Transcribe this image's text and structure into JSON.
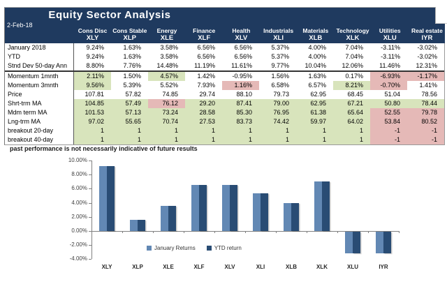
{
  "header": {
    "title": "Equity Sector Analysis",
    "date": "2-Feb-18"
  },
  "table": {
    "columns": [
      {
        "sector": "Cons Disc",
        "ticker": "XLY"
      },
      {
        "sector": "Cons Stable",
        "ticker": "XLP"
      },
      {
        "sector": "Energy",
        "ticker": "XLE"
      },
      {
        "sector": "Finance",
        "ticker": "XLF"
      },
      {
        "sector": "Health",
        "ticker": "XLV"
      },
      {
        "sector": "Industrials",
        "ticker": "XLI"
      },
      {
        "sector": "Materials",
        "ticker": "XLB"
      },
      {
        "sector": "Technology",
        "ticker": "XLK"
      },
      {
        "sector": "Utilities",
        "ticker": "XLU"
      },
      {
        "sector": "Real estate",
        "ticker": "IYR"
      }
    ],
    "rows": [
      {
        "label": "January 2018",
        "values": [
          "9.24%",
          "1.63%",
          "3.58%",
          "6.56%",
          "6.56%",
          "5.37%",
          "4.00%",
          "7.04%",
          "-3.11%",
          "-3.02%"
        ],
        "colors": [
          "white",
          "white",
          "white",
          "white",
          "white",
          "white",
          "white",
          "white",
          "white",
          "white"
        ]
      },
      {
        "label": "YTD",
        "values": [
          "9.24%",
          "1.63%",
          "3.58%",
          "6.56%",
          "6.56%",
          "5.37%",
          "4.00%",
          "7.04%",
          "-3.11%",
          "-3.02%"
        ],
        "colors": [
          "white",
          "white",
          "white",
          "white",
          "white",
          "white",
          "white",
          "white",
          "white",
          "white"
        ]
      },
      {
        "label": "Stnd Dev 50-day Ann",
        "values": [
          "8.80%",
          "7.76%",
          "14.48%",
          "11.19%",
          "11.61%",
          "9.77%",
          "10.04%",
          "12.06%",
          "11.46%",
          "12.31%"
        ],
        "colors": [
          "white",
          "white",
          "white",
          "white",
          "white",
          "white",
          "white",
          "white",
          "white",
          "white"
        ]
      },
      {
        "label": "Momentum 1mnth",
        "values": [
          "2.11%",
          "1.50%",
          "4.57%",
          "1.42%",
          "-0.95%",
          "1.56%",
          "1.63%",
          "0.17%",
          "-6.93%",
          "-1.17%"
        ],
        "colors": [
          "green",
          "white",
          "green",
          "white",
          "white",
          "white",
          "white",
          "white",
          "red",
          "red"
        ]
      },
      {
        "label": "Momentum 3mnth",
        "values": [
          "9.56%",
          "5.39%",
          "5.52%",
          "7.93%",
          "1.16%",
          "6.58%",
          "6.57%",
          "8.21%",
          "-0.70%",
          "1.41%"
        ],
        "colors": [
          "green",
          "white",
          "white",
          "white",
          "red",
          "white",
          "white",
          "green",
          "red",
          "white"
        ]
      },
      {
        "label": "Price",
        "values": [
          "107.81",
          "57.82",
          "74.85",
          "29.74",
          "88.10",
          "79.73",
          "62.95",
          "68.45",
          "51.04",
          "78.56"
        ],
        "colors": [
          "white",
          "white",
          "white",
          "white",
          "white",
          "white",
          "white",
          "white",
          "white",
          "white"
        ]
      },
      {
        "label": "Shrt-trm MA",
        "values": [
          "104.85",
          "57.49",
          "76.12",
          "29.20",
          "87.41",
          "79.00",
          "62.95",
          "67.21",
          "50.80",
          "78.44"
        ],
        "colors": [
          "green",
          "green",
          "red",
          "green",
          "green",
          "green",
          "green",
          "green",
          "green",
          "green"
        ]
      },
      {
        "label": "Mdm term MA",
        "values": [
          "101.53",
          "57.13",
          "73.24",
          "28.58",
          "85.30",
          "76.95",
          "61.38",
          "65.64",
          "52.55",
          "79.78"
        ],
        "colors": [
          "green",
          "green",
          "green",
          "green",
          "green",
          "green",
          "green",
          "green",
          "red",
          "red"
        ]
      },
      {
        "label": "Lng-trm MA",
        "values": [
          "97.02",
          "55.65",
          "70.74",
          "27.53",
          "83.73",
          "74.42",
          "59.97",
          "64.02",
          "53.84",
          "80.52"
        ],
        "colors": [
          "green",
          "green",
          "green",
          "green",
          "green",
          "green",
          "green",
          "green",
          "red",
          "red"
        ]
      },
      {
        "label": "breakout 20-day",
        "values": [
          "1",
          "1",
          "1",
          "1",
          "1",
          "1",
          "1",
          "1",
          "-1",
          "-1"
        ],
        "colors": [
          "green",
          "green",
          "green",
          "green",
          "green",
          "green",
          "green",
          "green",
          "red",
          "red"
        ]
      },
      {
        "label": "breakout 40-day",
        "values": [
          "1",
          "1",
          "1",
          "1",
          "1",
          "1",
          "1",
          "1",
          "-1",
          "-1"
        ],
        "colors": [
          "green",
          "green",
          "green",
          "green",
          "green",
          "green",
          "green",
          "green",
          "red",
          "red"
        ]
      }
    ]
  },
  "footnote": "past performance is not necessarily indicative of future results",
  "chart_data": {
    "type": "bar",
    "title": "",
    "xlabel": "",
    "ylabel": "",
    "categories": [
      "XLY",
      "XLP",
      "XLE",
      "XLF",
      "XLV",
      "XLI",
      "XLB",
      "XLK",
      "XLU",
      "IYR"
    ],
    "series": [
      {
        "name": "January Returns",
        "values": [
          9.24,
          1.63,
          3.58,
          6.56,
          6.56,
          5.37,
          4.0,
          7.04,
          -3.11,
          -3.02
        ]
      },
      {
        "name": "YTD return",
        "values": [
          9.24,
          1.63,
          3.58,
          6.56,
          6.56,
          5.37,
          4.0,
          7.04,
          -3.11,
          -3.02
        ]
      }
    ],
    "series_colors": [
      "#6288B4",
      "#294C74"
    ],
    "ylim": [
      -4,
      10
    ],
    "ytick_step": 2,
    "yticks": [
      "10.00%",
      "8.00%",
      "6.00%",
      "4.00%",
      "2.00%",
      "0.00%",
      "-2.00%",
      "-4.00%"
    ],
    "grid": false,
    "legend_position": "inside-bottom-left"
  },
  "colors": {
    "header_navy": "#1F3A5F",
    "cell_green": "#D8E4BC",
    "cell_red": "#E5B9B7",
    "bar_light": "#6288B4",
    "bar_dark": "#294C74"
  }
}
